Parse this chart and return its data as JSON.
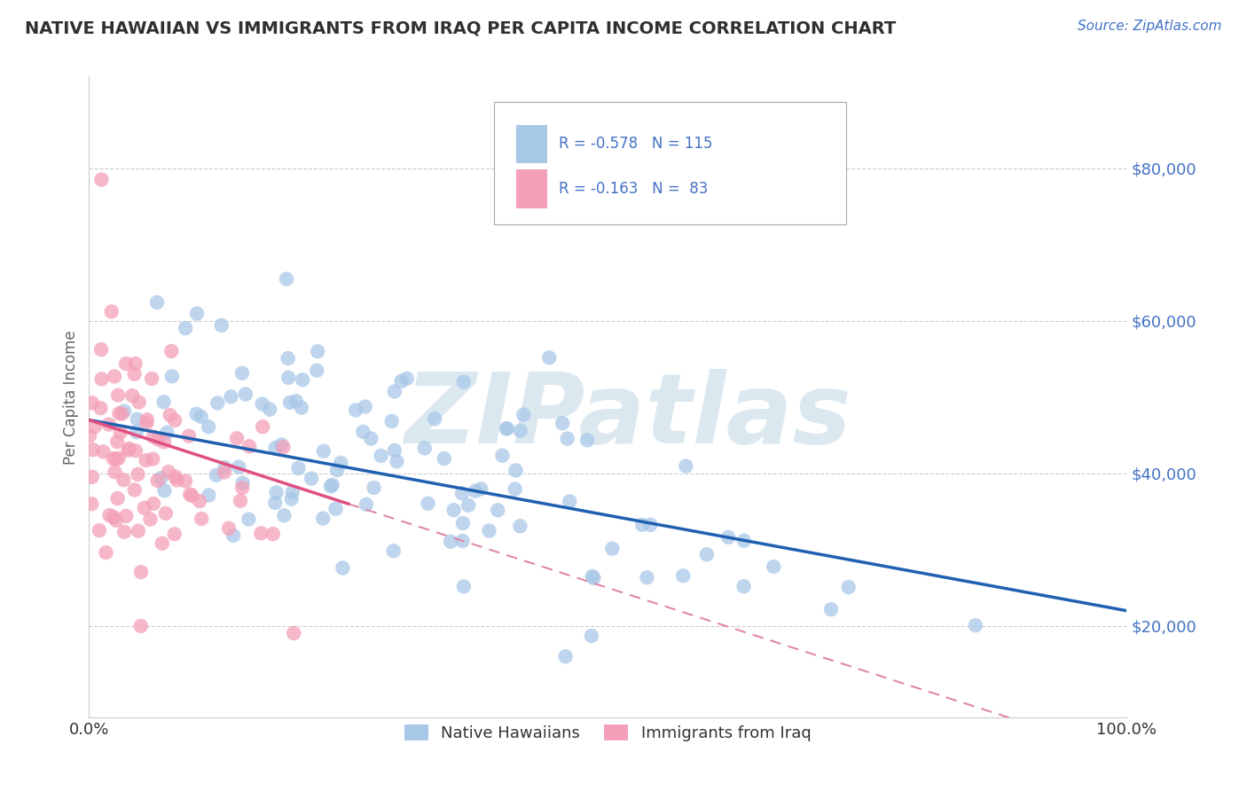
{
  "title": "NATIVE HAWAIIAN VS IMMIGRANTS FROM IRAQ PER CAPITA INCOME CORRELATION CHART",
  "source_text": "Source: ZipAtlas.com",
  "ylabel": "Per Capita Income",
  "x_tick_labels": [
    "0.0%",
    "100.0%"
  ],
  "y_tick_values": [
    20000,
    40000,
    60000,
    80000
  ],
  "legend_label1": "Native Hawaiians",
  "legend_label2": "Immigrants from Iraq",
  "r1": -0.578,
  "n1": 115,
  "r2": -0.163,
  "n2": 83,
  "color_blue": "#a8c8e8",
  "color_pink": "#f4a0b8",
  "line_blue": "#2060b0",
  "line_pink": "#e05080",
  "line_dashed_color": "#e088a8",
  "background": "#ffffff",
  "watermark_color": "#dce8f0",
  "title_color": "#303030",
  "axis_label_color": "#666666",
  "legend_stat_color": "#4472c4",
  "tick_color": "#4472c4",
  "xlim": [
    0.0,
    1.0
  ],
  "ylim": [
    8000,
    92000
  ],
  "seed1": 42,
  "seed2": 77
}
